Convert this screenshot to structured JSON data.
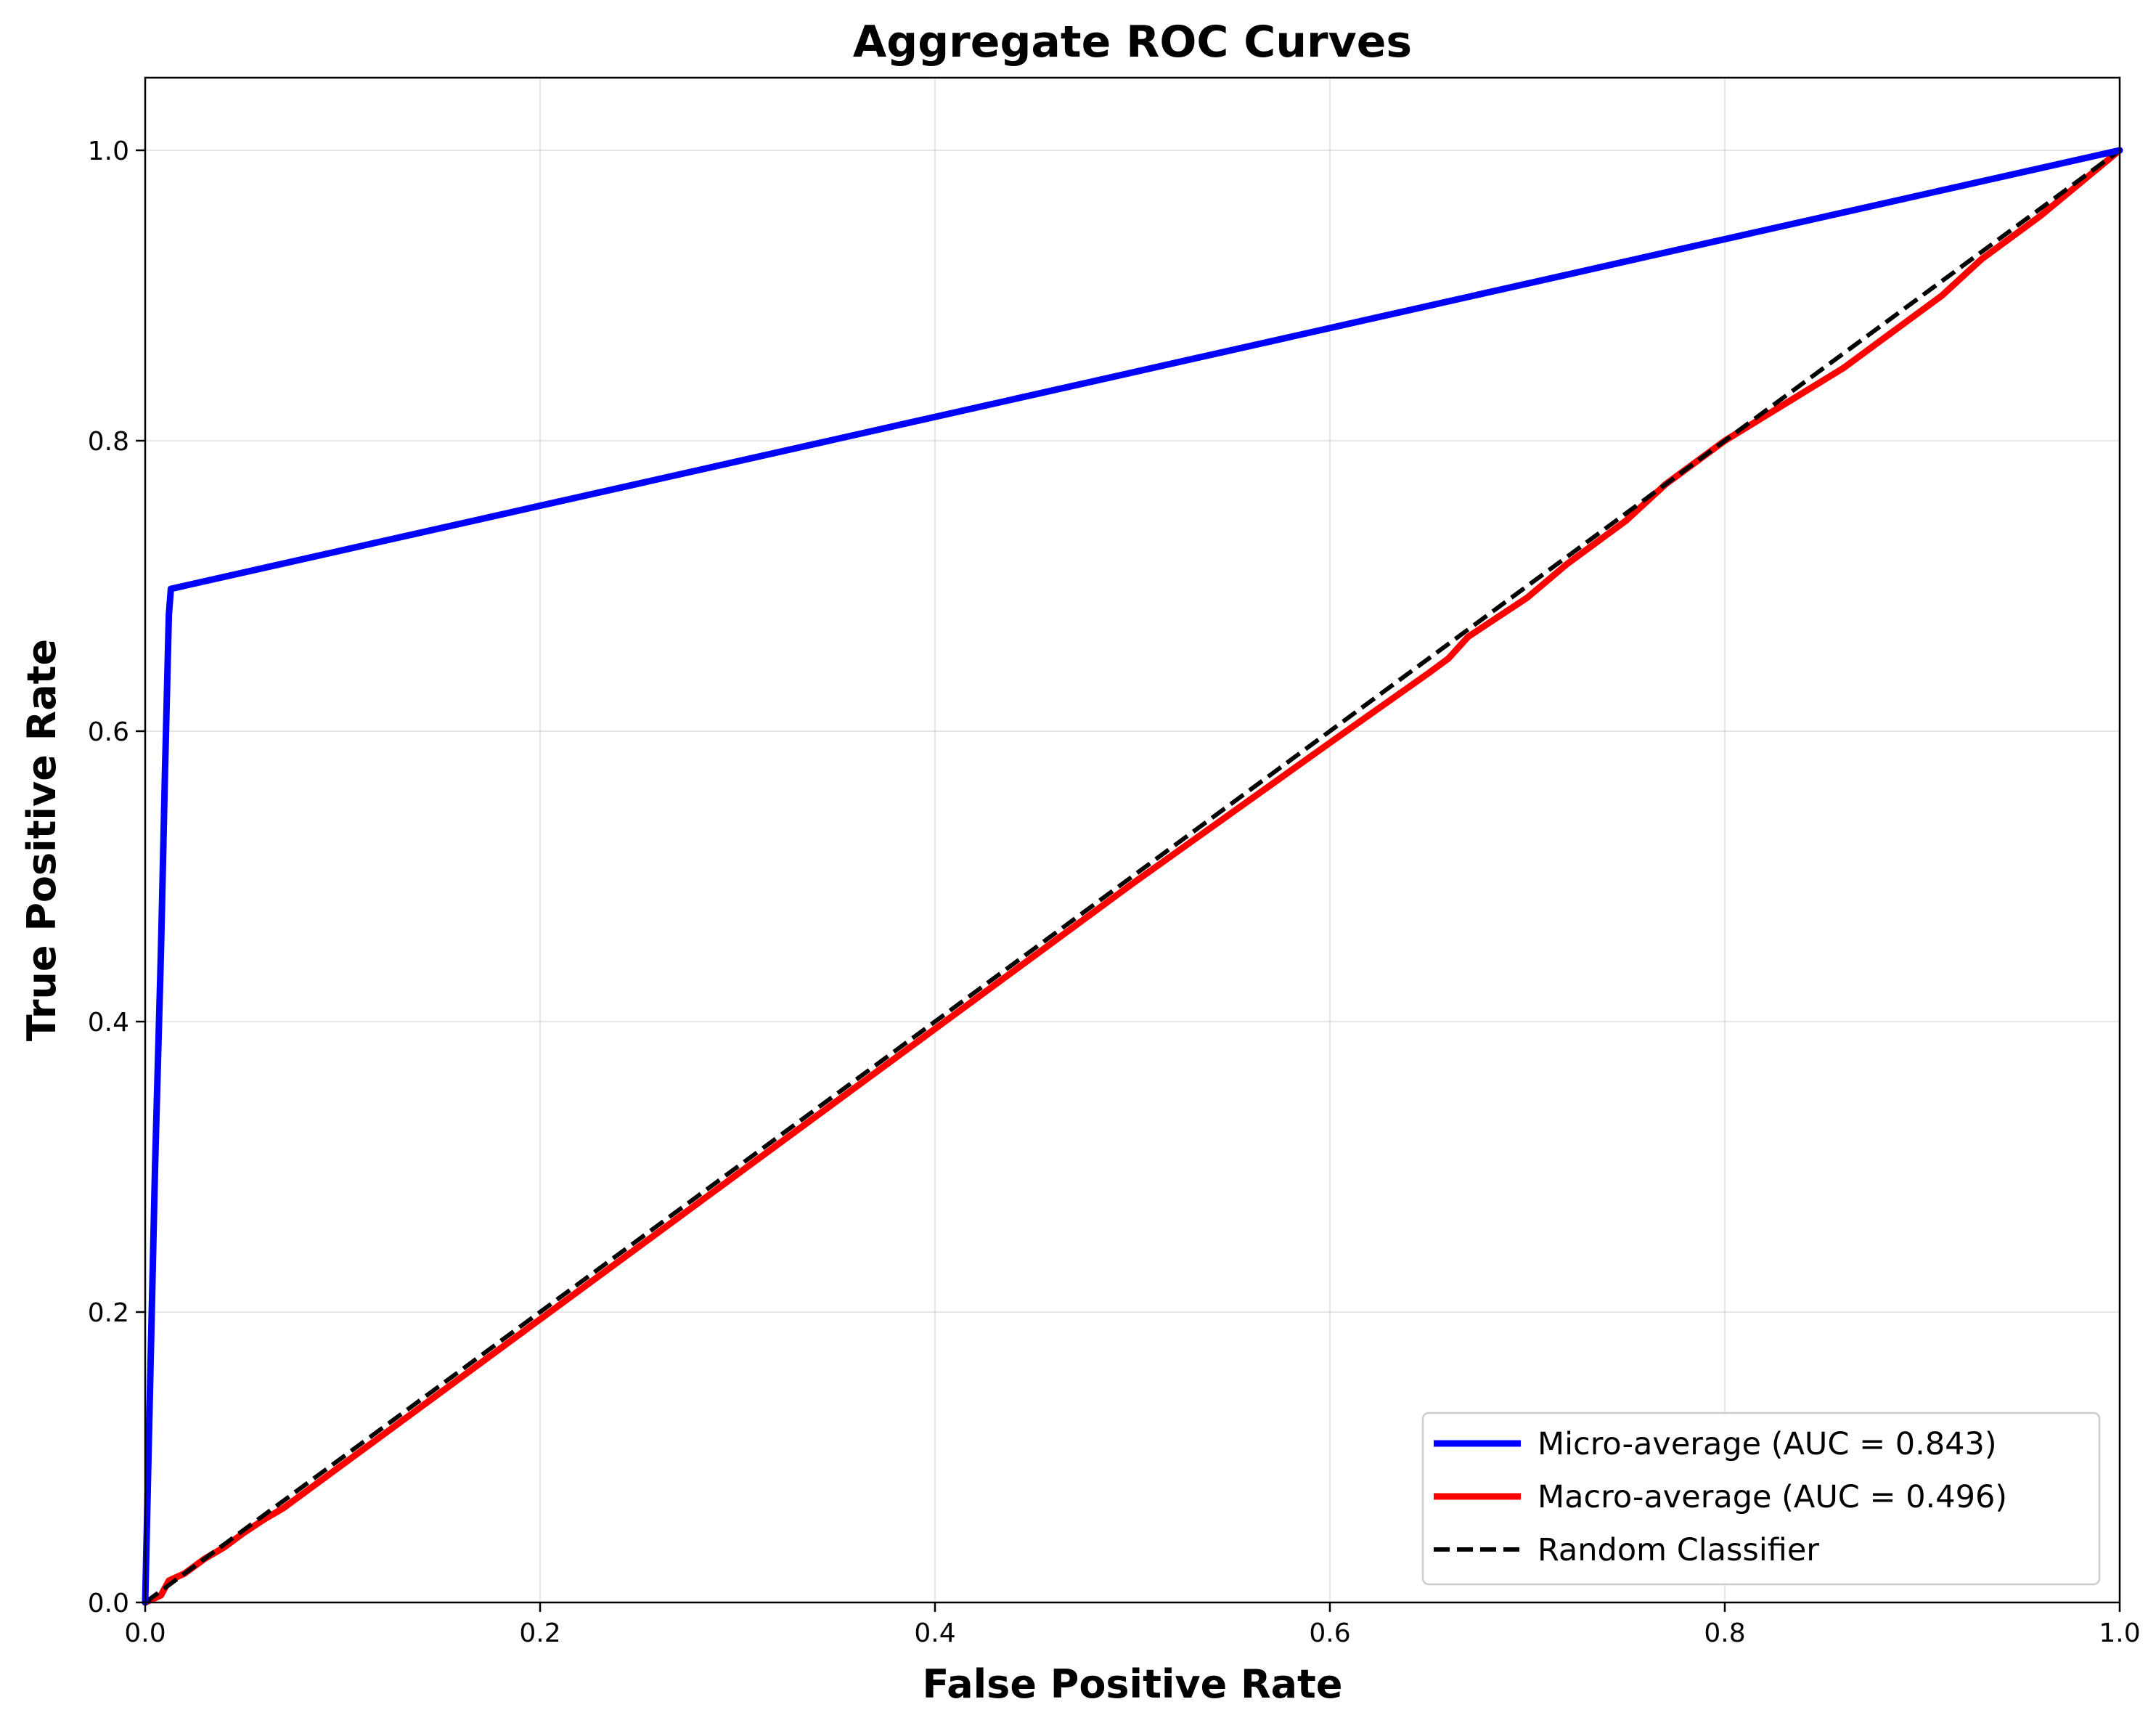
{
  "chart_data": {
    "type": "line",
    "title": "Aggregate ROC Curves",
    "xlabel": "False Positive Rate",
    "ylabel": "True Positive Rate",
    "xlim": [
      0.0,
      1.0
    ],
    "ylim": [
      0.0,
      1.05
    ],
    "xticks": [
      "0.0",
      "0.2",
      "0.4",
      "0.6",
      "0.8",
      "1.0"
    ],
    "yticks": [
      "0.0",
      "0.2",
      "0.4",
      "0.6",
      "0.8",
      "1.0"
    ],
    "grid": true,
    "legend_position": "lower-right",
    "series": [
      {
        "name": "Micro-average (AUC = 0.843)",
        "color": "#0000ff",
        "style": "solid",
        "points": [
          [
            0.0,
            0.0
          ],
          [
            0.002,
            0.12
          ],
          [
            0.005,
            0.3
          ],
          [
            0.008,
            0.45
          ],
          [
            0.01,
            0.57
          ],
          [
            0.012,
            0.68
          ],
          [
            0.013,
            0.698
          ],
          [
            1.0,
            1.0
          ]
        ]
      },
      {
        "name": "Macro-average (AUC = 0.496)",
        "color": "#ff0000",
        "style": "solid",
        "points": [
          [
            0.0,
            0.0
          ],
          [
            0.008,
            0.005
          ],
          [
            0.012,
            0.015
          ],
          [
            0.02,
            0.02
          ],
          [
            0.03,
            0.03
          ],
          [
            0.04,
            0.038
          ],
          [
            0.05,
            0.048
          ],
          [
            0.06,
            0.057
          ],
          [
            0.07,
            0.065
          ],
          [
            0.1,
            0.095
          ],
          [
            0.2,
            0.195
          ],
          [
            0.3,
            0.295
          ],
          [
            0.4,
            0.395
          ],
          [
            0.5,
            0.495
          ],
          [
            0.6,
            0.592
          ],
          [
            0.65,
            0.64
          ],
          [
            0.66,
            0.65
          ],
          [
            0.67,
            0.665
          ],
          [
            0.7,
            0.692
          ],
          [
            0.72,
            0.715
          ],
          [
            0.75,
            0.745
          ],
          [
            0.77,
            0.77
          ],
          [
            0.8,
            0.8
          ],
          [
            0.83,
            0.825
          ],
          [
            0.86,
            0.85
          ],
          [
            0.88,
            0.87
          ],
          [
            0.91,
            0.9
          ],
          [
            0.93,
            0.925
          ],
          [
            0.96,
            0.955
          ],
          [
            1.0,
            1.0
          ]
        ]
      },
      {
        "name": "Random Classifier",
        "color": "#000000",
        "style": "dashed",
        "points": [
          [
            0.0,
            0.0
          ],
          [
            1.0,
            1.0
          ]
        ]
      }
    ]
  }
}
